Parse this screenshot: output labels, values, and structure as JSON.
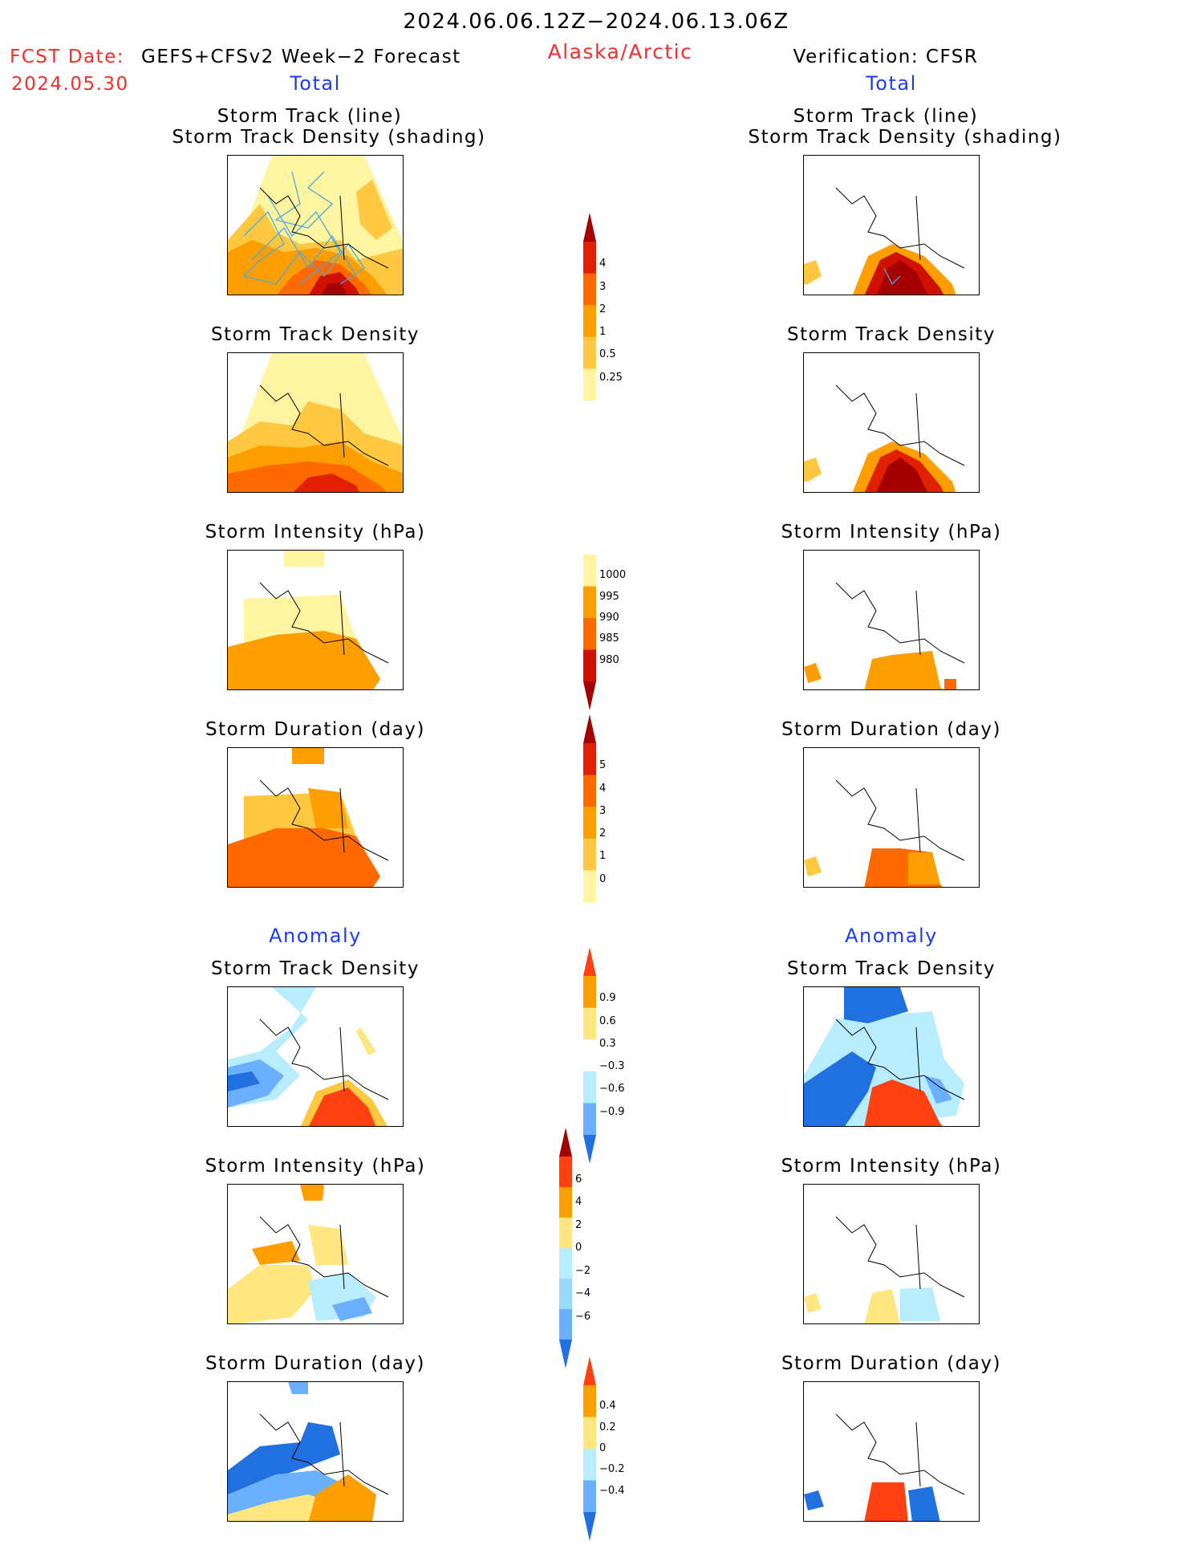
{
  "header": {
    "period": "2024.06.06.12Z−2024.06.13.06Z",
    "fcst_date_label": "FCST Date:",
    "fcst_model": "GEFS+CFSv2 Week−2 Forecast",
    "fcst_date_value": "2024.05.30",
    "region": "Alaska/Arctic",
    "verification": "Verification: CFSR"
  },
  "sections": {
    "total_left": "Total",
    "total_right": "Total",
    "anomaly_left": "Anomaly",
    "anomaly_right": "Anomaly"
  },
  "panel_titles": {
    "track_line": "Storm Track (line)",
    "track_shading": "Storm Track Density (shading)",
    "density": "Storm Track Density",
    "intensity": "Storm Intensity (hPa)",
    "duration": "Storm Duration (day)"
  },
  "colorbars": {
    "density": {
      "labels": [
        "4",
        "3",
        "2",
        "1",
        "0.5",
        "0.25"
      ],
      "colors": [
        "#a50000",
        "#e02000",
        "#ff6a00",
        "#ff9e00",
        "#ffc840",
        "#fff5a0"
      ]
    },
    "intensity": {
      "labels": [
        "1000",
        "995",
        "990",
        "985",
        "980"
      ],
      "colors": [
        "#fff5a0",
        "#ff9e00",
        "#ff6a00",
        "#d01000",
        "#a50000"
      ]
    },
    "duration": {
      "labels": [
        "5",
        "4",
        "3",
        "2",
        "1",
        "0"
      ],
      "colors": [
        "#a50000",
        "#e02000",
        "#ff6a00",
        "#ff9e00",
        "#ffc840",
        "#fff5a0"
      ]
    },
    "anom_density": {
      "labels": [
        "0.9",
        "0.6",
        "0.3",
        "−0.3",
        "−0.6",
        "−0.9"
      ],
      "colors": [
        "#ff4010",
        "#ff9e00",
        "#ffe680",
        "#ffffff",
        "#b8ecff",
        "#6ab0ff",
        "#2070e0"
      ]
    },
    "anom_intensity": {
      "labels": [
        "6",
        "4",
        "2",
        "0",
        "−2",
        "−4",
        "−6"
      ],
      "colors": [
        "#a50000",
        "#ff4010",
        "#ff9e00",
        "#ffe680",
        "#b8ecff",
        "#9ad8ff",
        "#6ab0ff",
        "#2070e0"
      ]
    },
    "anom_duration": {
      "labels": [
        "0.4",
        "0.2",
        "0",
        "−0.2",
        "−0.4"
      ],
      "colors": [
        "#ff4010",
        "#ff9e00",
        "#ffe680",
        "#b8ecff",
        "#6ab0ff",
        "#2070e0"
      ]
    }
  }
}
